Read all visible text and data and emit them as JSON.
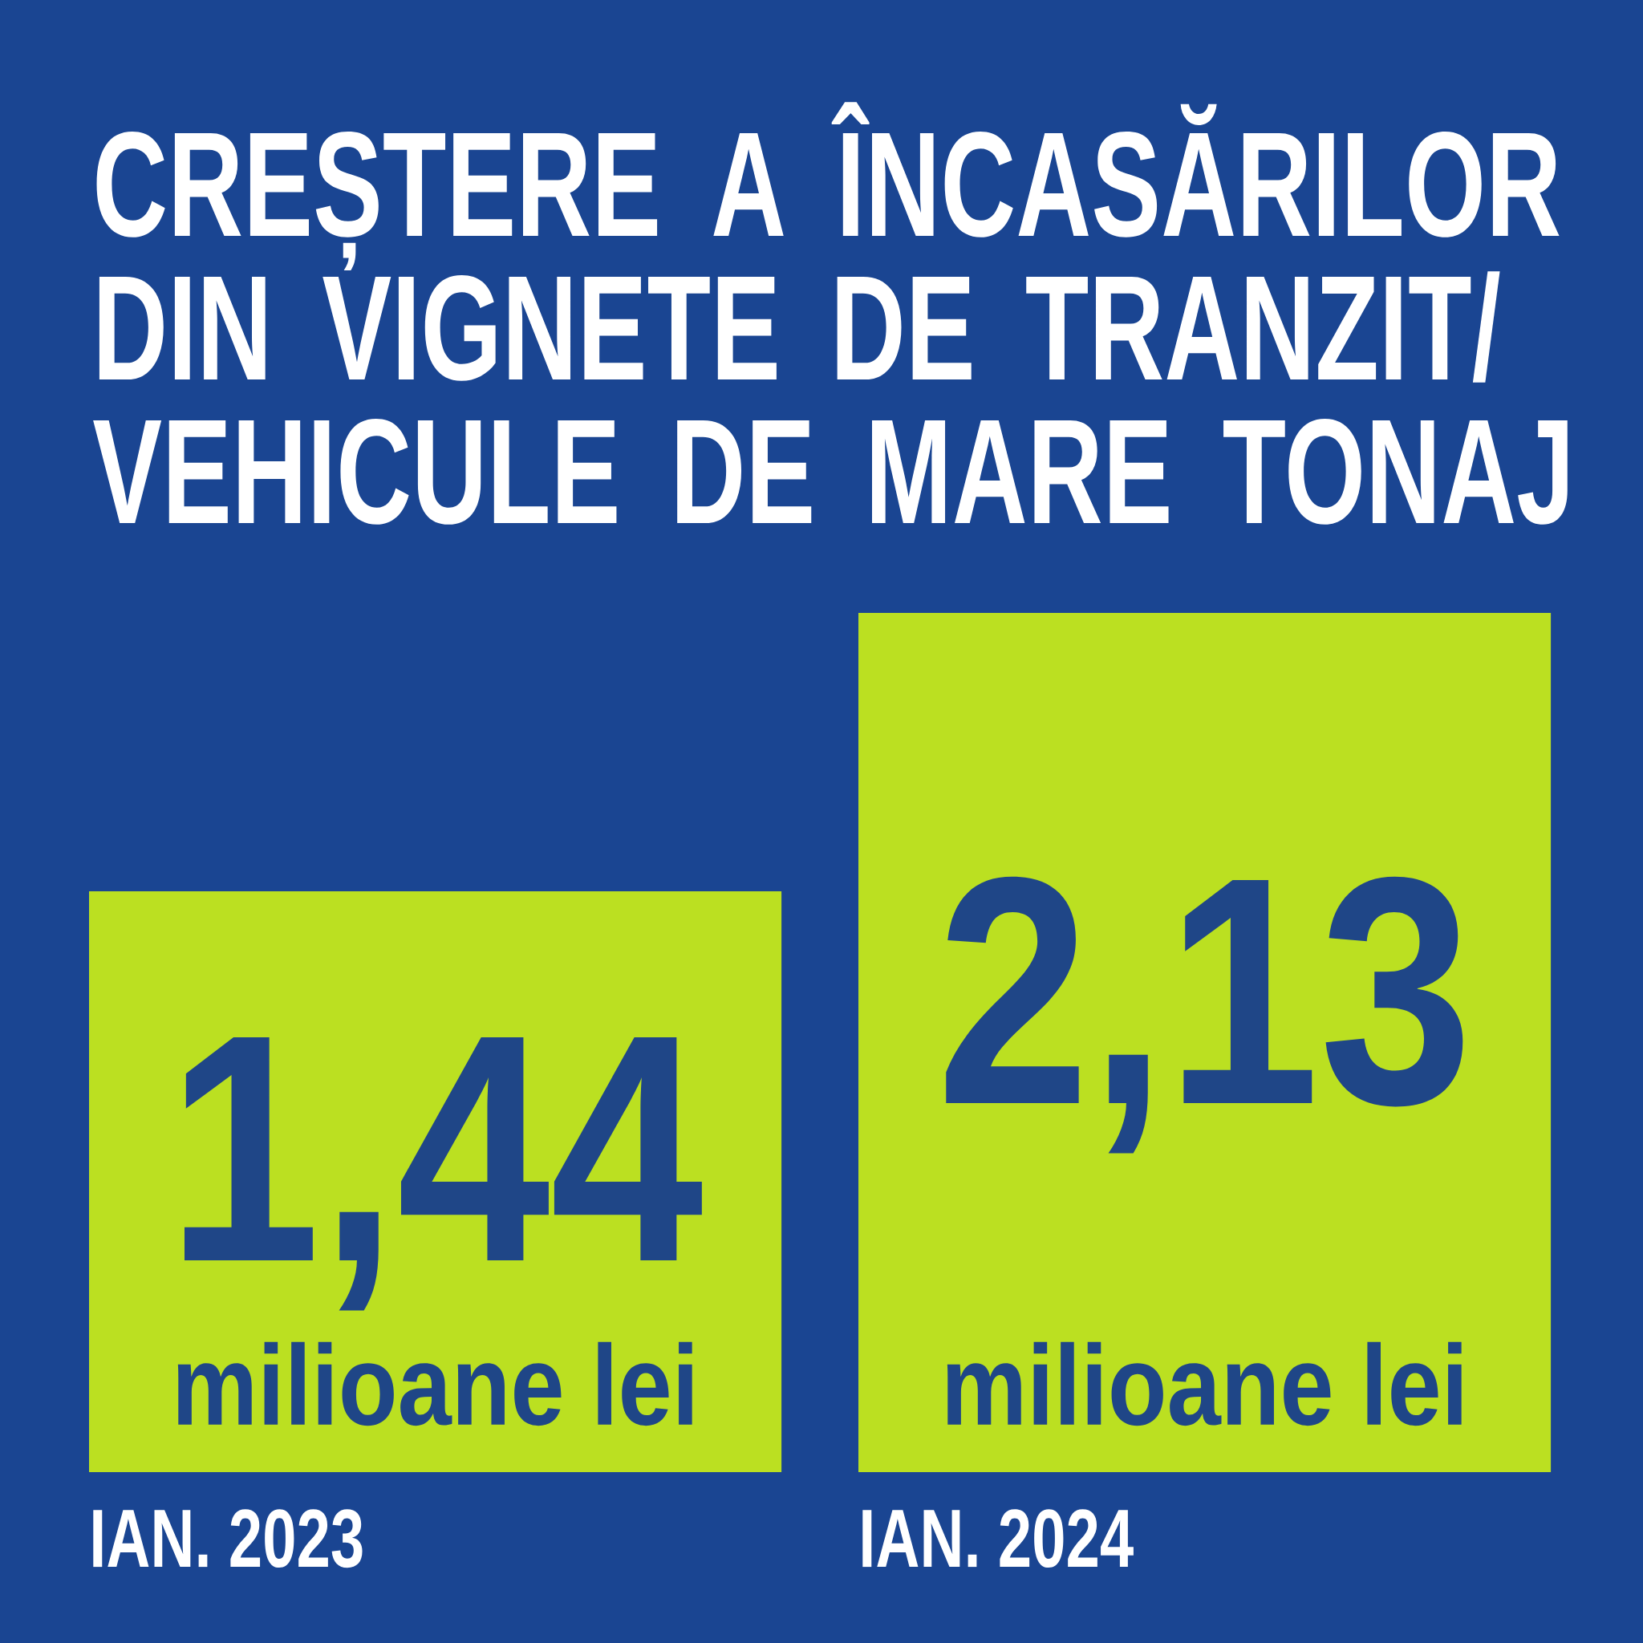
{
  "chart_data": {
    "type": "bar",
    "title": "CREȘTERE A ÎNCASĂRILOR DIN VIGNETE DE TRANZIT/ VEHICULE DE MARE TONAJ",
    "categories": [
      "IAN. 2023",
      "IAN. 2024"
    ],
    "values": [
      1.44,
      2.13
    ],
    "color": "#bbe021",
    "value_labels": [
      "1,44",
      "2,13"
    ],
    "annotations": [
      "milioane lei",
      "milioane lei"
    ]
  }
}
